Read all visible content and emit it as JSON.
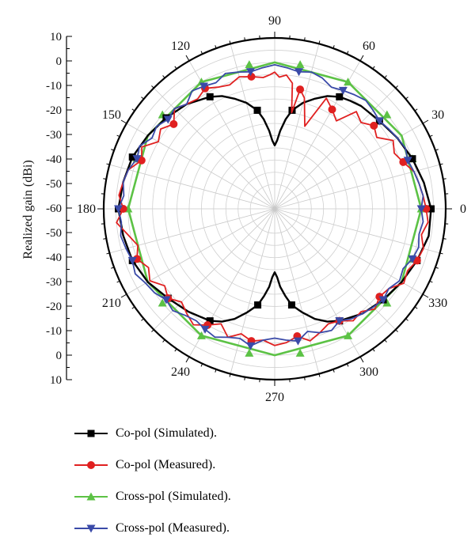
{
  "chart_data": {
    "type": "polar",
    "ylabel": "Realized gain (dBi)",
    "radial_range": [
      -60,
      10
    ],
    "radial_ticks": [
      "10",
      "0",
      "-10",
      "-20",
      "-30",
      "-40",
      "-50",
      "-60",
      "-50",
      "-40",
      "-30",
      "-20",
      "-10",
      "0",
      "10"
    ],
    "angle_ticks": [
      0,
      30,
      60,
      90,
      120,
      150,
      180,
      210,
      240,
      270,
      300,
      330
    ],
    "grid": true,
    "legend_position": "bottom",
    "series": [
      {
        "name": "Co-pol (Simulated).",
        "color": "#000000",
        "marker": "square",
        "theta": [
          0,
          10,
          20,
          30,
          40,
          50,
          55,
          60,
          65,
          70,
          75,
          80,
          83,
          86,
          88,
          90,
          92,
          94,
          97,
          100,
          105,
          110,
          115,
          120,
          130,
          140,
          150,
          160,
          170,
          180,
          190,
          200,
          210,
          220,
          230,
          240,
          245,
          250,
          255,
          260,
          263,
          266,
          268,
          270,
          272,
          274,
          277,
          280,
          285,
          290,
          295,
          300,
          310,
          320,
          330,
          340,
          350
        ],
        "r": [
          4,
          2,
          0,
          -2,
          -4,
          -5,
          -6,
          -7,
          -9,
          -12,
          -15,
          -19,
          -23,
          -28,
          -32,
          -34,
          -32,
          -28,
          -23,
          -19,
          -15,
          -12,
          -9,
          -7,
          -4,
          -2,
          0,
          2,
          3,
          4,
          3,
          2,
          0,
          -3,
          -5,
          -7,
          -9,
          -12,
          -16,
          -20,
          -24,
          -28,
          -32,
          -34,
          -32,
          -28,
          -24,
          -20,
          -16,
          -12,
          -9,
          -7,
          -4,
          -2,
          0,
          2,
          4
        ],
        "marker_theta": [
          0,
          20,
          40,
          60,
          80,
          100,
          120,
          140,
          160,
          180,
          200,
          220,
          240,
          260,
          280,
          300,
          320,
          340
        ]
      },
      {
        "name": "Co-pol (Measured).",
        "color": "#e02020",
        "marker": "circle",
        "theta": [
          0,
          5,
          10,
          15,
          20,
          25,
          30,
          35,
          40,
          45,
          50,
          55,
          60,
          65,
          70,
          75,
          78,
          80,
          82,
          85,
          88,
          90,
          92,
          95,
          100,
          105,
          110,
          115,
          120,
          125,
          130,
          135,
          140,
          145,
          150,
          155,
          160,
          165,
          170,
          175,
          180,
          185,
          190,
          195,
          200,
          205,
          210,
          215,
          220,
          225,
          230,
          235,
          240,
          245,
          250,
          255,
          260,
          265,
          270,
          275,
          280,
          285,
          290,
          295,
          300,
          305,
          310,
          315,
          320,
          325,
          330,
          335,
          340,
          345,
          350,
          355
        ],
        "r": [
          2,
          1,
          0,
          -1,
          -4,
          -6,
          -4,
          -9,
          -7,
          -10,
          -8,
          -16,
          -13,
          -10,
          -24,
          -13,
          -10,
          -20,
          -8,
          -5,
          -6,
          -4,
          -5,
          -6,
          -5,
          -4,
          -6,
          -5,
          -3,
          -5,
          -4,
          -2,
          -6,
          -3,
          -5,
          0,
          -2,
          2,
          3,
          4,
          2,
          5,
          1,
          -2,
          0,
          -3,
          -1,
          -5,
          -3,
          -6,
          -4,
          -2,
          -5,
          -8,
          -4,
          -7,
          -5,
          -6,
          -4,
          -5,
          -7,
          -4,
          -6,
          -8,
          -7,
          -4,
          -5,
          -2,
          -4,
          -3,
          1,
          0,
          2,
          3,
          1,
          3
        ],
        "marker_theta": [
          0,
          20,
          40,
          60,
          78,
          100,
          120,
          140,
          160,
          180,
          200,
          220,
          240,
          260,
          280,
          300,
          320,
          340
        ]
      },
      {
        "name": "Cross-pol (Simulated).",
        "color": "#5cc245",
        "marker": "triangle-up",
        "theta": [
          0,
          30,
          60,
          90,
          120,
          150,
          180,
          210,
          240,
          270,
          300,
          330,
          360
        ],
        "r": [
          0,
          0,
          0,
          0,
          0,
          0,
          0,
          0,
          0,
          0,
          0,
          0,
          0
        ],
        "marker_theta": [
          0,
          20,
          40,
          60,
          80,
          100,
          120,
          140,
          160,
          180,
          200,
          220,
          240,
          260,
          280,
          300,
          320,
          340
        ]
      },
      {
        "name": "Cross-pol (Measured).",
        "color": "#3a4aa8",
        "marker": "triangle-down",
        "theta": [
          0,
          5,
          10,
          15,
          20,
          25,
          30,
          35,
          40,
          45,
          50,
          55,
          60,
          65,
          70,
          75,
          80,
          85,
          90,
          95,
          100,
          105,
          110,
          115,
          120,
          125,
          130,
          135,
          140,
          145,
          150,
          155,
          160,
          165,
          170,
          175,
          180,
          185,
          190,
          195,
          200,
          205,
          210,
          215,
          220,
          225,
          230,
          235,
          240,
          245,
          250,
          255,
          260,
          265,
          270,
          275,
          280,
          285,
          290,
          295,
          300,
          305,
          310,
          315,
          320,
          325,
          330,
          335,
          340,
          345,
          350,
          355
        ],
        "r": [
          0,
          1,
          0,
          -1,
          -2,
          -1,
          -2,
          -3,
          -4,
          -3,
          -2,
          -3,
          -4,
          -5,
          -3,
          -2,
          -3,
          -2,
          -1,
          -2,
          -3,
          -2,
          -1,
          -3,
          -2,
          -1,
          -4,
          -2,
          -3,
          -1,
          -2,
          1,
          0,
          2,
          3,
          2,
          4,
          3,
          4,
          3,
          2,
          3,
          1,
          0,
          -2,
          -1,
          -3,
          -4,
          -3,
          -2,
          -4,
          -5,
          -3,
          -6,
          -7,
          -6,
          -5,
          -8,
          -6,
          -5,
          -7,
          -5,
          -4,
          -3,
          -2,
          -3,
          -1,
          -2,
          0,
          1,
          0,
          1
        ],
        "marker_theta": [
          0,
          20,
          40,
          60,
          80,
          100,
          120,
          140,
          160,
          180,
          200,
          220,
          240,
          260,
          280,
          300,
          320,
          340
        ]
      }
    ]
  },
  "legend": {
    "items": [
      {
        "label": "Co-pol (Simulated).",
        "color": "#000000",
        "marker": "square"
      },
      {
        "label": "Co-pol (Measured).",
        "color": "#e02020",
        "marker": "circle"
      },
      {
        "label": "Cross-pol (Simulated).",
        "color": "#5cc245",
        "marker": "triangle-up"
      },
      {
        "label": "Cross-pol (Measured).",
        "color": "#3a4aa8",
        "marker": "triangle-down"
      }
    ]
  }
}
